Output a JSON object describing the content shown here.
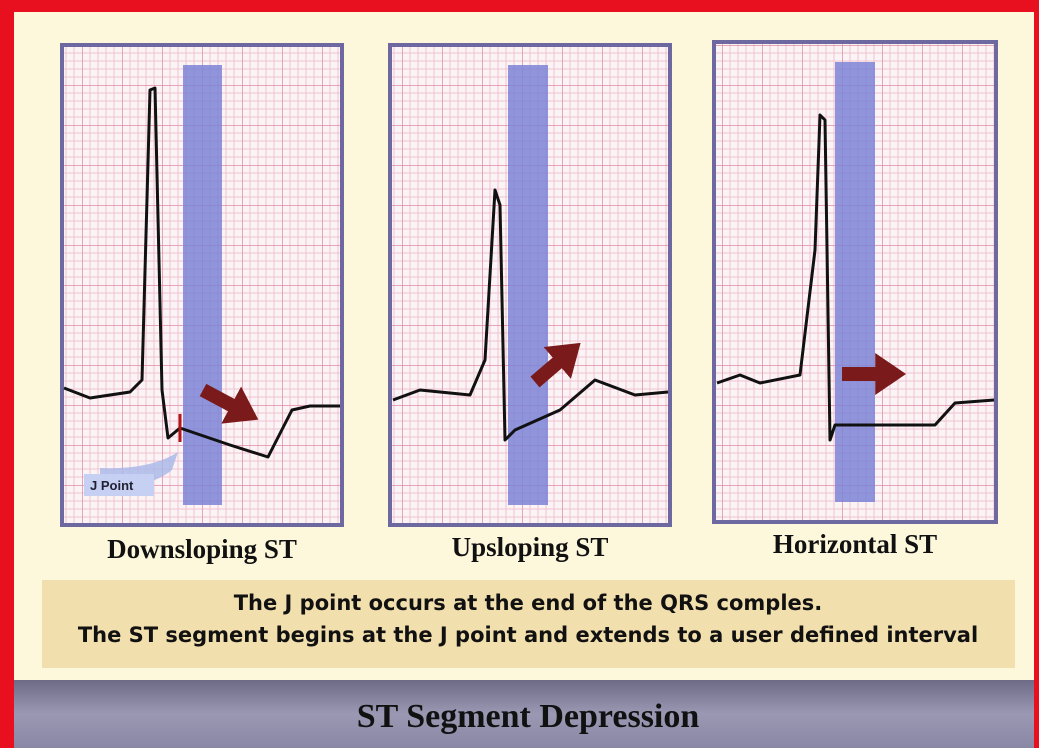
{
  "panels": [
    {
      "label": "Downsloping ST",
      "annotation": "J Point"
    },
    {
      "label": "Upsloping ST"
    },
    {
      "label": "Horizontal ST"
    }
  ],
  "note": [
    "The J point occurs at the end of the QRS comples.",
    "The ST segment begins at the J point and extends to a user defined interval"
  ],
  "title": "ST Segment Depression"
}
